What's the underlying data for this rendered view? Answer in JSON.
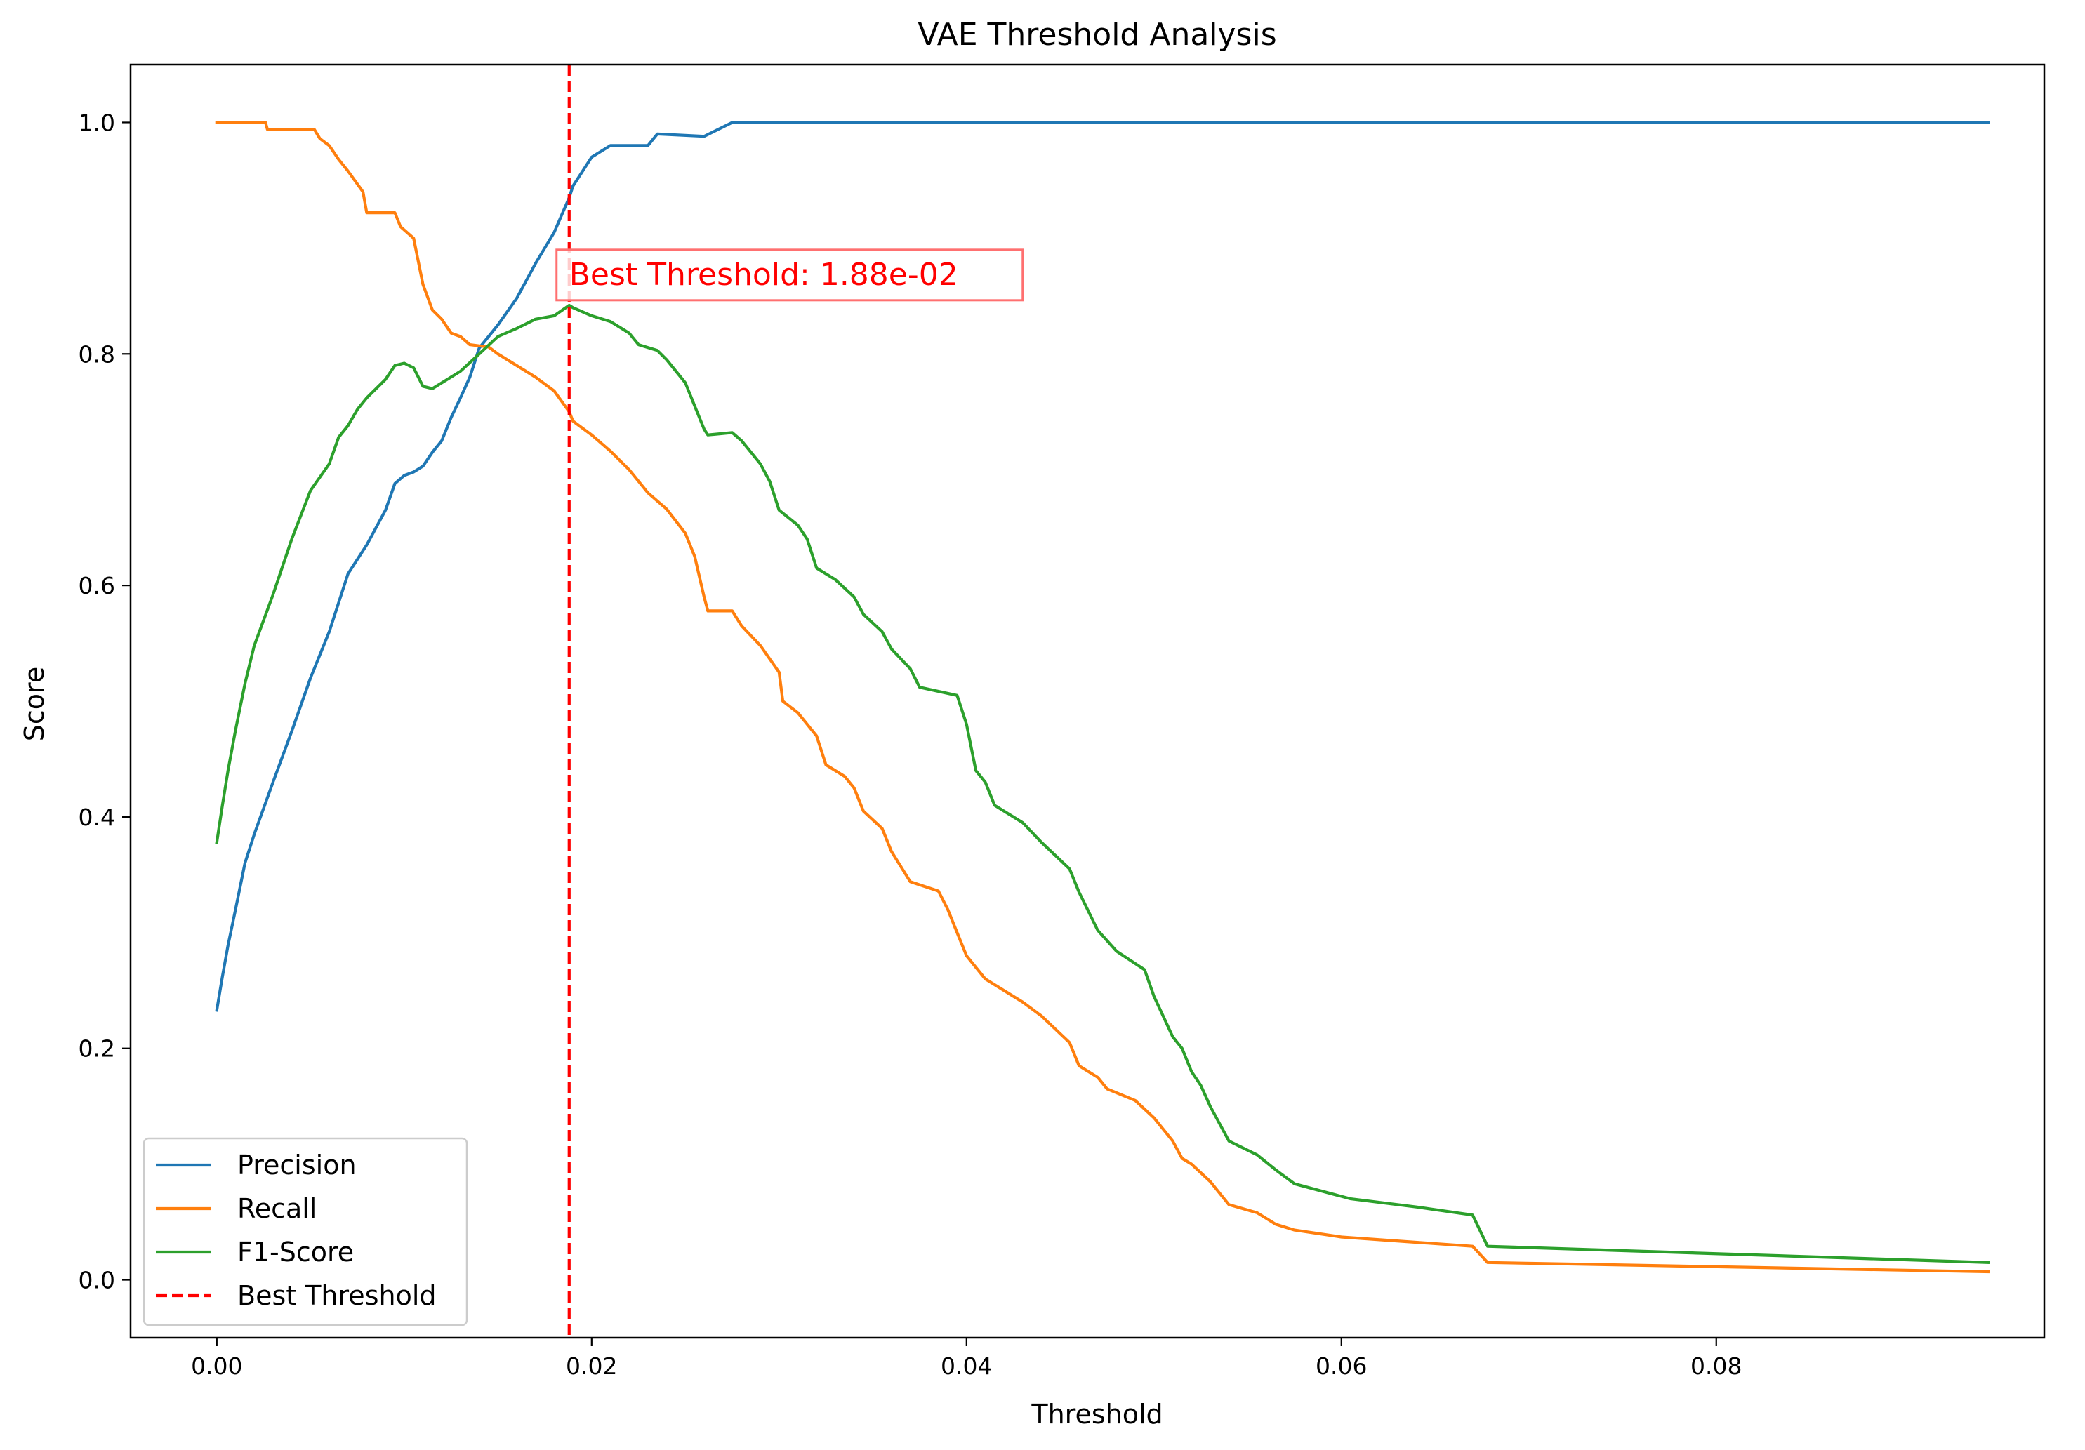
{
  "chart_data": {
    "type": "line",
    "title": "VAE Threshold Analysis",
    "xlabel": "Threshold",
    "ylabel": "Score",
    "xlim": [
      -0.0046,
      0.0975
    ],
    "ylim": [
      -0.05,
      1.05
    ],
    "x_ticks": [
      0.0,
      0.02,
      0.04,
      0.06,
      0.08
    ],
    "x_tick_labels": [
      "0.00",
      "0.02",
      "0.04",
      "0.06",
      "0.08"
    ],
    "y_ticks": [
      0.0,
      0.2,
      0.4,
      0.6,
      0.8,
      1.0
    ],
    "y_tick_labels": [
      "0.0",
      "0.2",
      "0.4",
      "0.6",
      "0.8",
      "1.0"
    ],
    "grid": false,
    "legend_position": "lower-left",
    "series": [
      {
        "name": "Precision",
        "color": "#1f77b4",
        "style": "solid",
        "points": [
          [
            0.0,
            0.233
          ],
          [
            0.0003,
            0.262
          ],
          [
            0.0006,
            0.289
          ],
          [
            0.001,
            0.32
          ],
          [
            0.0015,
            0.36
          ],
          [
            0.002,
            0.385
          ],
          [
            0.003,
            0.43
          ],
          [
            0.004,
            0.474
          ],
          [
            0.005,
            0.52
          ],
          [
            0.006,
            0.56
          ],
          [
            0.007,
            0.61
          ],
          [
            0.008,
            0.635
          ],
          [
            0.009,
            0.665
          ],
          [
            0.0095,
            0.688
          ],
          [
            0.01,
            0.695
          ],
          [
            0.0105,
            0.698
          ],
          [
            0.011,
            0.703
          ],
          [
            0.0115,
            0.715
          ],
          [
            0.012,
            0.725
          ],
          [
            0.0125,
            0.745
          ],
          [
            0.013,
            0.762
          ],
          [
            0.0135,
            0.78
          ],
          [
            0.014,
            0.805
          ],
          [
            0.015,
            0.825
          ],
          [
            0.016,
            0.848
          ],
          [
            0.017,
            0.878
          ],
          [
            0.018,
            0.905
          ],
          [
            0.0188,
            0.935
          ],
          [
            0.019,
            0.945
          ],
          [
            0.02,
            0.97
          ],
          [
            0.021,
            0.98
          ],
          [
            0.023,
            0.98
          ],
          [
            0.0235,
            0.99
          ],
          [
            0.026,
            0.988
          ],
          [
            0.0275,
            1.0
          ],
          [
            0.0945,
            1.0
          ]
        ]
      },
      {
        "name": "Recall",
        "color": "#ff7f0e",
        "style": "solid",
        "points": [
          [
            0.0,
            1.0
          ],
          [
            0.0026,
            1.0
          ],
          [
            0.0027,
            0.994
          ],
          [
            0.0052,
            0.994
          ],
          [
            0.0055,
            0.986
          ],
          [
            0.006,
            0.98
          ],
          [
            0.0065,
            0.968
          ],
          [
            0.007,
            0.958
          ],
          [
            0.0078,
            0.94
          ],
          [
            0.008,
            0.922
          ],
          [
            0.0095,
            0.922
          ],
          [
            0.0098,
            0.91
          ],
          [
            0.0105,
            0.9
          ],
          [
            0.011,
            0.86
          ],
          [
            0.0115,
            0.838
          ],
          [
            0.012,
            0.83
          ],
          [
            0.0125,
            0.818
          ],
          [
            0.013,
            0.815
          ],
          [
            0.0135,
            0.808
          ],
          [
            0.0145,
            0.806
          ],
          [
            0.015,
            0.8
          ],
          [
            0.016,
            0.79
          ],
          [
            0.017,
            0.78
          ],
          [
            0.018,
            0.768
          ],
          [
            0.0188,
            0.75
          ],
          [
            0.019,
            0.742
          ],
          [
            0.02,
            0.73
          ],
          [
            0.021,
            0.716
          ],
          [
            0.022,
            0.7
          ],
          [
            0.023,
            0.68
          ],
          [
            0.024,
            0.666
          ],
          [
            0.025,
            0.645
          ],
          [
            0.0255,
            0.625
          ],
          [
            0.026,
            0.59
          ],
          [
            0.0262,
            0.578
          ],
          [
            0.0275,
            0.578
          ],
          [
            0.028,
            0.565
          ],
          [
            0.029,
            0.548
          ],
          [
            0.03,
            0.525
          ],
          [
            0.0302,
            0.5
          ],
          [
            0.031,
            0.49
          ],
          [
            0.032,
            0.47
          ],
          [
            0.0325,
            0.445
          ],
          [
            0.0335,
            0.435
          ],
          [
            0.034,
            0.425
          ],
          [
            0.0345,
            0.405
          ],
          [
            0.0355,
            0.39
          ],
          [
            0.036,
            0.37
          ],
          [
            0.037,
            0.344
          ],
          [
            0.0385,
            0.336
          ],
          [
            0.039,
            0.32
          ],
          [
            0.0395,
            0.3
          ],
          [
            0.04,
            0.28
          ],
          [
            0.041,
            0.26
          ],
          [
            0.042,
            0.25
          ],
          [
            0.043,
            0.24
          ],
          [
            0.044,
            0.228
          ],
          [
            0.0455,
            0.205
          ],
          [
            0.046,
            0.185
          ],
          [
            0.047,
            0.175
          ],
          [
            0.0475,
            0.165
          ],
          [
            0.049,
            0.155
          ],
          [
            0.05,
            0.14
          ],
          [
            0.051,
            0.12
          ],
          [
            0.0515,
            0.105
          ],
          [
            0.052,
            0.1
          ],
          [
            0.053,
            0.085
          ],
          [
            0.054,
            0.065
          ],
          [
            0.0555,
            0.058
          ],
          [
            0.0565,
            0.048
          ],
          [
            0.0575,
            0.043
          ],
          [
            0.06,
            0.037
          ],
          [
            0.0635,
            0.033
          ],
          [
            0.067,
            0.029
          ],
          [
            0.0678,
            0.015
          ],
          [
            0.0945,
            0.007
          ]
        ]
      },
      {
        "name": "F1-Score",
        "color": "#2ca02c",
        "style": "solid",
        "points": [
          [
            0.0,
            0.378
          ],
          [
            0.0003,
            0.41
          ],
          [
            0.0006,
            0.44
          ],
          [
            0.001,
            0.475
          ],
          [
            0.0015,
            0.515
          ],
          [
            0.002,
            0.548
          ],
          [
            0.003,
            0.592
          ],
          [
            0.004,
            0.64
          ],
          [
            0.005,
            0.682
          ],
          [
            0.006,
            0.705
          ],
          [
            0.0065,
            0.728
          ],
          [
            0.007,
            0.738
          ],
          [
            0.0075,
            0.752
          ],
          [
            0.008,
            0.762
          ],
          [
            0.009,
            0.778
          ],
          [
            0.0095,
            0.79
          ],
          [
            0.01,
            0.792
          ],
          [
            0.0105,
            0.788
          ],
          [
            0.011,
            0.772
          ],
          [
            0.0115,
            0.77
          ],
          [
            0.012,
            0.775
          ],
          [
            0.013,
            0.785
          ],
          [
            0.014,
            0.8
          ],
          [
            0.015,
            0.815
          ],
          [
            0.016,
            0.822
          ],
          [
            0.017,
            0.83
          ],
          [
            0.018,
            0.833
          ],
          [
            0.0188,
            0.842
          ],
          [
            0.019,
            0.84
          ],
          [
            0.02,
            0.833
          ],
          [
            0.021,
            0.828
          ],
          [
            0.022,
            0.818
          ],
          [
            0.0225,
            0.808
          ],
          [
            0.0235,
            0.803
          ],
          [
            0.024,
            0.795
          ],
          [
            0.025,
            0.775
          ],
          [
            0.0255,
            0.755
          ],
          [
            0.026,
            0.735
          ],
          [
            0.0262,
            0.73
          ],
          [
            0.0275,
            0.732
          ],
          [
            0.028,
            0.725
          ],
          [
            0.029,
            0.705
          ],
          [
            0.0295,
            0.69
          ],
          [
            0.03,
            0.665
          ],
          [
            0.031,
            0.652
          ],
          [
            0.0315,
            0.64
          ],
          [
            0.032,
            0.615
          ],
          [
            0.033,
            0.605
          ],
          [
            0.034,
            0.59
          ],
          [
            0.0345,
            0.575
          ],
          [
            0.0355,
            0.56
          ],
          [
            0.036,
            0.545
          ],
          [
            0.037,
            0.528
          ],
          [
            0.0375,
            0.512
          ],
          [
            0.0395,
            0.505
          ],
          [
            0.04,
            0.48
          ],
          [
            0.0405,
            0.44
          ],
          [
            0.041,
            0.43
          ],
          [
            0.0415,
            0.41
          ],
          [
            0.043,
            0.395
          ],
          [
            0.044,
            0.378
          ],
          [
            0.0455,
            0.355
          ],
          [
            0.046,
            0.335
          ],
          [
            0.047,
            0.302
          ],
          [
            0.048,
            0.284
          ],
          [
            0.0495,
            0.268
          ],
          [
            0.05,
            0.245
          ],
          [
            0.051,
            0.21
          ],
          [
            0.0515,
            0.2
          ],
          [
            0.052,
            0.18
          ],
          [
            0.0525,
            0.168
          ],
          [
            0.053,
            0.15
          ],
          [
            0.054,
            0.12
          ],
          [
            0.0555,
            0.108
          ],
          [
            0.0565,
            0.095
          ],
          [
            0.0575,
            0.083
          ],
          [
            0.0605,
            0.07
          ],
          [
            0.064,
            0.063
          ],
          [
            0.067,
            0.056
          ],
          [
            0.0678,
            0.029
          ],
          [
            0.0945,
            0.015
          ]
        ]
      }
    ],
    "vertical_line": {
      "name": "Best Threshold",
      "x": 0.0188,
      "color": "#ff0000",
      "style": "dashed"
    },
    "annotation": {
      "text": "Best Threshold: 1.88e-02",
      "x": 0.0188,
      "y": 0.85,
      "color": "#ff0000"
    }
  }
}
